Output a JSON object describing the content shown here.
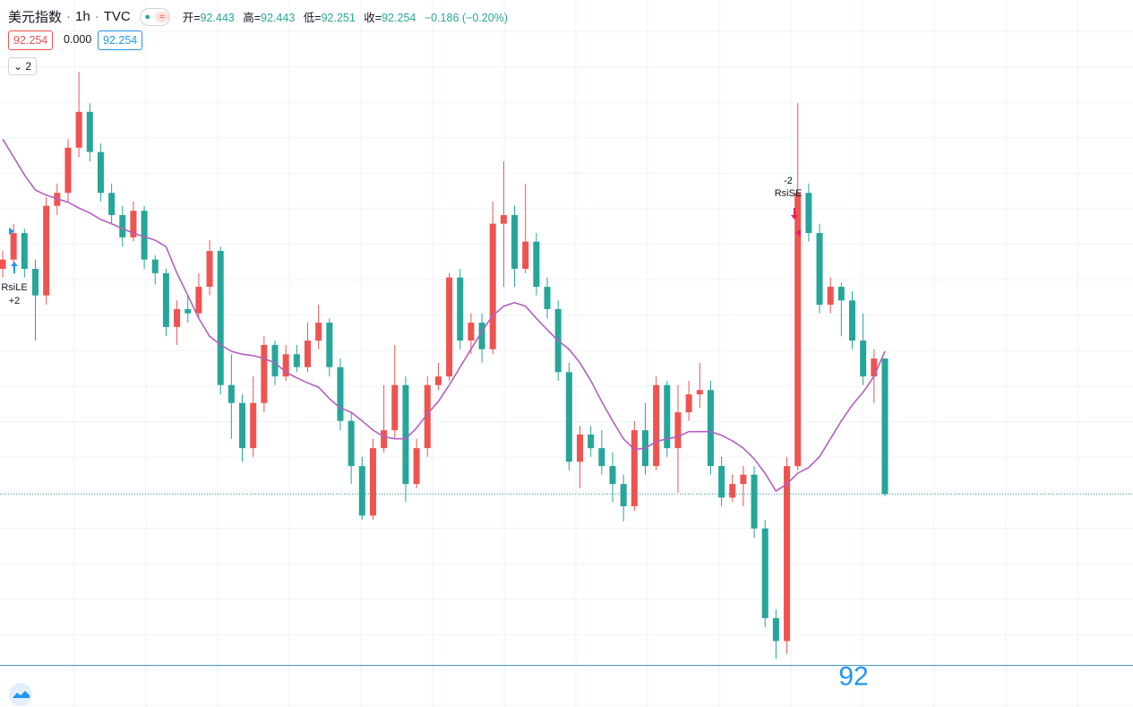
{
  "header": {
    "symbol": "美元指数",
    "interval": "1h",
    "source": "TVC",
    "ohlc": [
      {
        "label": "开=",
        "value": "92.443"
      },
      {
        "label": "高=",
        "value": "92.443"
      },
      {
        "label": "低=",
        "value": "92.251"
      },
      {
        "label": "收=",
        "value": "92.254"
      }
    ],
    "change": "−0.186 (−0.20%)",
    "badges": [
      "92.254",
      "0.000",
      "92.254"
    ],
    "collapse": "2"
  },
  "chart_data": {
    "type": "candlestick",
    "up_color": "#ef5350",
    "down_color": "#26a69a",
    "ylim": [
      91.957,
      92.943
    ],
    "yticks": [
      92
    ],
    "horizontal_line": 92.015,
    "categories": [
      null,
      null,
      null,
      null,
      null,
      null,
      null,
      null,
      null,
      null,
      null,
      null,
      null,
      null,
      null,
      null,
      null,
      null,
      null,
      null,
      null,
      null,
      null,
      null,
      null,
      null,
      null,
      null,
      null,
      null,
      null,
      null,
      null,
      null,
      null,
      null,
      null,
      null,
      null,
      null,
      null,
      null,
      null,
      null,
      null,
      null,
      null,
      null,
      null,
      null,
      null,
      null,
      null,
      null,
      null,
      null,
      null,
      null,
      null,
      null,
      null,
      null,
      null,
      null,
      null,
      null,
      null,
      null,
      null,
      null,
      null,
      null,
      null,
      null,
      null,
      null,
      null,
      null,
      null,
      null,
      null,
      null
    ],
    "ohlc": [
      [
        92.568,
        92.593,
        92.556,
        92.581
      ],
      [
        92.581,
        92.631,
        92.568,
        92.618
      ],
      [
        92.618,
        92.624,
        92.556,
        92.568
      ],
      [
        92.568,
        92.581,
        92.468,
        92.531
      ],
      [
        92.531,
        92.668,
        92.518,
        92.656
      ],
      [
        92.656,
        92.687,
        92.643,
        92.674
      ],
      [
        92.674,
        92.749,
        92.662,
        92.737
      ],
      [
        92.737,
        92.843,
        92.724,
        92.787
      ],
      [
        92.787,
        92.799,
        92.718,
        92.731
      ],
      [
        92.731,
        92.743,
        92.662,
        92.674
      ],
      [
        92.674,
        92.687,
        92.631,
        92.643
      ],
      [
        92.643,
        92.656,
        92.599,
        92.612
      ],
      [
        92.612,
        92.662,
        92.606,
        92.649
      ],
      [
        92.649,
        92.656,
        92.568,
        92.581
      ],
      [
        92.581,
        92.587,
        92.546,
        92.562
      ],
      [
        92.562,
        92.568,
        92.474,
        92.487
      ],
      [
        92.487,
        92.524,
        92.462,
        92.512
      ],
      [
        92.512,
        92.531,
        92.493,
        92.506
      ],
      [
        92.506,
        92.562,
        92.499,
        92.543
      ],
      [
        92.543,
        92.608,
        92.531,
        92.593
      ],
      [
        92.593,
        92.599,
        92.393,
        92.406
      ],
      [
        92.406,
        92.449,
        92.331,
        92.381
      ],
      [
        92.381,
        92.393,
        92.299,
        92.318
      ],
      [
        92.318,
        92.418,
        92.306,
        92.381
      ],
      [
        92.381,
        92.474,
        92.368,
        92.462
      ],
      [
        92.462,
        92.468,
        92.406,
        92.418
      ],
      [
        92.418,
        92.462,
        92.412,
        92.449
      ],
      [
        92.449,
        92.462,
        92.424,
        92.431
      ],
      [
        92.431,
        92.493,
        92.424,
        92.468
      ],
      [
        92.468,
        92.518,
        92.456,
        92.493
      ],
      [
        92.493,
        92.499,
        92.418,
        92.431
      ],
      [
        92.431,
        92.443,
        92.343,
        92.356
      ],
      [
        92.356,
        92.368,
        92.268,
        92.293
      ],
      [
        92.293,
        92.306,
        92.218,
        92.224
      ],
      [
        92.224,
        92.331,
        92.218,
        92.318
      ],
      [
        92.318,
        92.406,
        92.312,
        92.343
      ],
      [
        92.343,
        92.462,
        92.331,
        92.406
      ],
      [
        92.406,
        92.418,
        92.243,
        92.268
      ],
      [
        92.268,
        92.331,
        92.262,
        92.318
      ],
      [
        92.318,
        92.418,
        92.306,
        92.406
      ],
      [
        92.406,
        92.437,
        92.399,
        92.418
      ],
      [
        92.418,
        92.562,
        92.412,
        92.556
      ],
      [
        92.556,
        92.568,
        92.456,
        92.468
      ],
      [
        92.468,
        92.506,
        92.449,
        92.493
      ],
      [
        92.493,
        92.506,
        92.437,
        92.456
      ],
      [
        92.456,
        92.662,
        92.449,
        92.631
      ],
      [
        92.631,
        92.718,
        92.543,
        92.643
      ],
      [
        92.643,
        92.656,
        92.543,
        92.568
      ],
      [
        92.568,
        92.687,
        92.562,
        92.606
      ],
      [
        92.606,
        92.618,
        92.531,
        92.543
      ],
      [
        92.543,
        92.556,
        92.499,
        92.512
      ],
      [
        92.512,
        92.524,
        92.412,
        92.424
      ],
      [
        92.424,
        92.437,
        92.287,
        92.299
      ],
      [
        92.299,
        92.349,
        92.262,
        92.337
      ],
      [
        92.337,
        92.349,
        92.306,
        92.318
      ],
      [
        92.318,
        92.343,
        92.281,
        92.293
      ],
      [
        92.293,
        92.312,
        92.243,
        92.268
      ],
      [
        92.268,
        92.281,
        92.216,
        92.237
      ],
      [
        92.237,
        92.356,
        92.231,
        92.343
      ],
      [
        92.343,
        92.381,
        92.281,
        92.293
      ],
      [
        92.293,
        92.418,
        92.287,
        92.406
      ],
      [
        92.406,
        92.412,
        92.306,
        92.318
      ],
      [
        92.318,
        92.406,
        92.256,
        92.368
      ],
      [
        92.368,
        92.412,
        92.356,
        92.393
      ],
      [
        92.393,
        92.437,
        92.374,
        92.399
      ],
      [
        92.399,
        92.412,
        92.281,
        92.293
      ],
      [
        92.293,
        92.306,
        92.237,
        92.249
      ],
      [
        92.249,
        92.281,
        92.243,
        92.268
      ],
      [
        92.268,
        92.293,
        92.237,
        92.281
      ],
      [
        92.281,
        92.293,
        92.193,
        92.206
      ],
      [
        92.206,
        92.218,
        92.068,
        92.081
      ],
      [
        92.081,
        92.093,
        92.024,
        92.049
      ],
      [
        92.049,
        92.306,
        92.031,
        92.293
      ],
      [
        92.293,
        92.799,
        92.287,
        92.674
      ],
      [
        92.674,
        92.687,
        92.606,
        92.618
      ],
      [
        92.618,
        92.631,
        92.506,
        92.518
      ],
      [
        92.518,
        92.556,
        92.506,
        92.543
      ],
      [
        92.543,
        92.549,
        92.474,
        92.524
      ],
      [
        92.524,
        92.537,
        92.456,
        92.468
      ],
      [
        92.468,
        92.506,
        92.406,
        92.418
      ],
      [
        92.418,
        92.456,
        92.381,
        92.443
      ],
      [
        92.443,
        92.443,
        92.251,
        92.254
      ]
    ],
    "ma": {
      "color": "#b55fc2",
      "values": [
        92.749,
        92.724,
        92.699,
        92.678,
        92.671,
        92.666,
        92.661,
        92.653,
        92.646,
        92.637,
        92.631,
        92.624,
        92.618,
        92.613,
        92.608,
        92.599,
        92.562,
        92.531,
        92.499,
        92.474,
        92.462,
        92.453,
        92.449,
        92.447,
        92.443,
        92.437,
        92.424,
        92.416,
        92.409,
        92.403,
        92.387,
        92.374,
        92.368,
        92.356,
        92.343,
        92.334,
        92.331,
        92.331,
        92.346,
        92.366,
        92.383,
        92.406,
        92.431,
        92.456,
        92.481,
        92.503,
        92.516,
        92.521,
        92.516,
        92.499,
        92.483,
        92.468,
        92.456,
        92.437,
        92.412,
        92.383,
        92.356,
        92.331,
        92.316,
        92.318,
        92.327,
        92.331,
        92.334,
        92.341,
        92.341,
        92.341,
        92.336,
        92.328,
        92.318,
        92.303,
        92.283,
        92.258,
        92.268,
        92.283,
        92.291,
        92.306,
        92.331,
        92.356,
        92.378,
        92.396,
        92.418,
        92.453
      ]
    },
    "signals": [
      {
        "texts": [
          "RsiLE",
          "+2"
        ]
      },
      {
        "texts": [
          "-2",
          "RsiSE"
        ]
      }
    ]
  }
}
